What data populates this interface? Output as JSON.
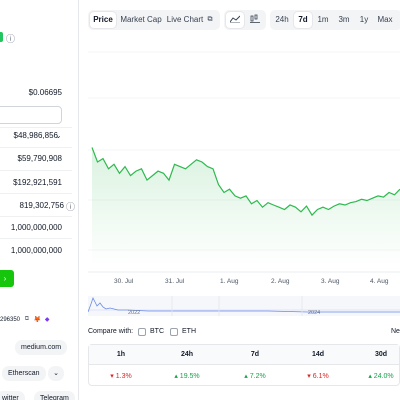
{
  "left": {
    "price_small": "$0.06695",
    "market_cap": "$48,986,856",
    "fdv": "$59,790,908",
    "volume": "$192,921,591",
    "circulating": "819,302,756",
    "total_supply": "1,000,000,000",
    "max_supply": "1,000,000,000",
    "contract_suffix": "296350",
    "website": "medium.com",
    "explorer": "Etherscan",
    "community": [
      "witter",
      "Telegram"
    ]
  },
  "toolbar": {
    "tabs": [
      "Price",
      "Market Cap",
      "Live Chart"
    ],
    "ranges": [
      "24h",
      "7d",
      "1m",
      "3m",
      "1y",
      "Max"
    ],
    "active_tab": "Price",
    "active_range": "7d"
  },
  "chart_data": {
    "type": "line",
    "x_ticks": [
      "30. Jul",
      "31. Jul",
      "1. Aug",
      "2. Aug",
      "3. Aug",
      "4. Aug"
    ],
    "nav_labels": [
      "2022",
      "2024"
    ],
    "values": [
      0.0705,
      0.0692,
      0.0695,
      0.0686,
      0.069,
      0.0682,
      0.0688,
      0.068,
      0.0684,
      0.0686,
      0.0676,
      0.068,
      0.0684,
      0.0682,
      0.0676,
      0.069,
      0.0688,
      0.0686,
      0.069,
      0.0694,
      0.0692,
      0.0688,
      0.0686,
      0.0672,
      0.0665,
      0.0668,
      0.0662,
      0.066,
      0.0662,
      0.0655,
      0.0658,
      0.0652,
      0.0656,
      0.0654,
      0.0652,
      0.065,
      0.0654,
      0.0652,
      0.0648,
      0.0653,
      0.0645,
      0.065,
      0.0652,
      0.065,
      0.0653,
      0.0655,
      0.0654,
      0.0656,
      0.0657,
      0.0659,
      0.0658,
      0.066,
      0.0662,
      0.0661,
      0.0665,
      0.0663,
      0.0668
    ],
    "ylim": [
      0.06,
      0.08
    ],
    "line_color": "#2eb94f",
    "area_color": "#e5f7e9"
  },
  "compare": {
    "label": "Compare with:",
    "options": [
      "BTC",
      "ETH"
    ],
    "right_cut": "Ne"
  },
  "performance": {
    "headers": [
      "1h",
      "24h",
      "7d",
      "14d",
      "30d"
    ],
    "values": [
      "1.3%",
      "19.5%",
      "7.2%",
      "6.1%",
      "24.0%"
    ],
    "directions": [
      "down",
      "up",
      "up",
      "down",
      "up"
    ],
    "colors": {
      "up": "#16a34a",
      "down": "#dc2626"
    }
  }
}
